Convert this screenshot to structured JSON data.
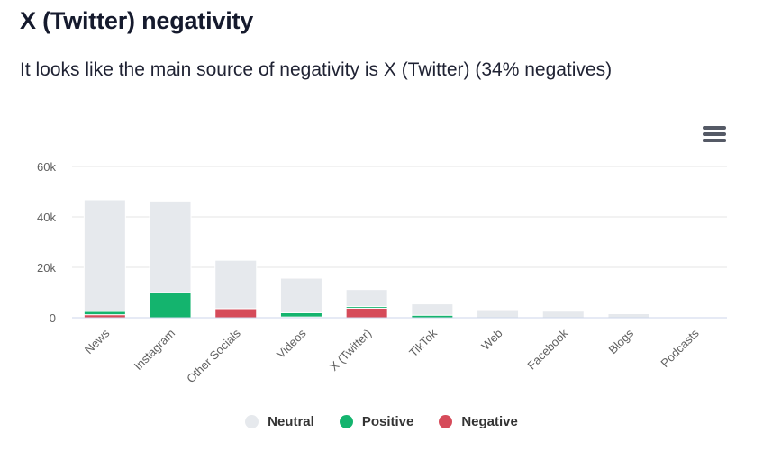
{
  "title": "X (Twitter) negativity",
  "subtitle": "It looks like the main source of negativity is X (Twitter) (34% negatives)",
  "menu": {
    "icon": "hamburger-menu-icon"
  },
  "colors": {
    "Neutral": "#e6e9ed",
    "Positive": "#14b46e",
    "Negative": "#d64b5a",
    "grid": "#e6e6e6",
    "axis": "#ccd6eb"
  },
  "chart_data": {
    "type": "bar",
    "stacked": true,
    "categories": [
      "News",
      "Instagram",
      "Other Socials",
      "Videos",
      "X (Twitter)",
      "TikTok",
      "Web",
      "Facebook",
      "Blogs",
      "Podcasts"
    ],
    "series": [
      {
        "name": "Negative",
        "values": [
          1200,
          0,
          3600,
          300,
          3800,
          0,
          0,
          0,
          0,
          0
        ]
      },
      {
        "name": "Positive",
        "values": [
          1300,
          10000,
          0,
          1700,
          700,
          1000,
          0,
          0,
          0,
          0
        ]
      },
      {
        "name": "Neutral",
        "values": [
          44300,
          36300,
          19200,
          13700,
          6700,
          4500,
          3200,
          2600,
          1600,
          200
        ]
      }
    ],
    "yticks": [
      0,
      20000,
      40000,
      60000
    ],
    "ytick_labels": [
      "0",
      "20k",
      "40k",
      "60k"
    ],
    "ylim": [
      0,
      60000
    ],
    "grid": true,
    "legend": {
      "position": "bottom-center",
      "items": [
        "Neutral",
        "Positive",
        "Negative"
      ]
    }
  }
}
